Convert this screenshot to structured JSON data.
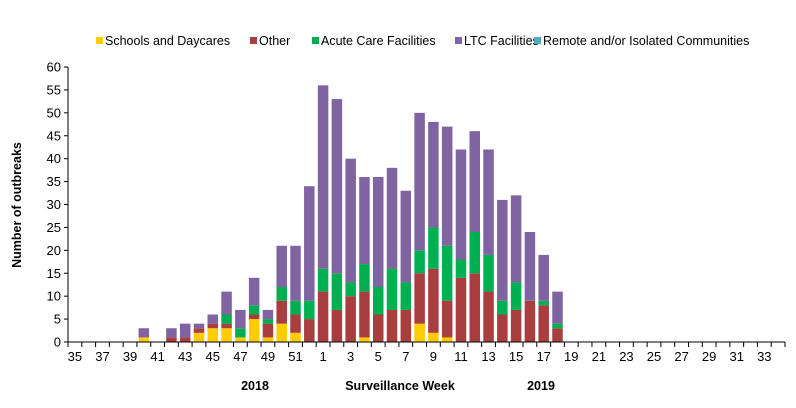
{
  "chart_data": {
    "type": "bar",
    "stacked": true,
    "title": "",
    "xlabel": "Surveillance Week",
    "ylabel": "Number of outbreaks",
    "year_labels": [
      "2018",
      "2019"
    ],
    "ylim": [
      0,
      60
    ],
    "ytick_step": 5,
    "grid": false,
    "legend_position": "top",
    "categories": [
      "35",
      "36",
      "37",
      "38",
      "39",
      "40",
      "41",
      "42",
      "43",
      "44",
      "45",
      "46",
      "47",
      "48",
      "49",
      "50",
      "51",
      "52",
      "1",
      "2",
      "3",
      "4",
      "5",
      "6",
      "7",
      "8",
      "9",
      "10",
      "11",
      "12",
      "13",
      "14",
      "15",
      "16",
      "17",
      "18",
      "19",
      "20",
      "21",
      "22",
      "23",
      "24",
      "25",
      "26",
      "27",
      "28",
      "29",
      "30",
      "31",
      "32",
      "33",
      "34"
    ],
    "xtick_labels_shown": [
      "35",
      "37",
      "39",
      "41",
      "43",
      "45",
      "47",
      "49",
      "51",
      "1",
      "3",
      "5",
      "7",
      "9",
      "11",
      "13",
      "15",
      "17",
      "19",
      "21",
      "23",
      "25",
      "27",
      "29",
      "31",
      "33"
    ],
    "series": [
      {
        "name": "Schools and Daycares",
        "color": "#FFCC00",
        "values": [
          0,
          0,
          0,
          0,
          0,
          1,
          0,
          0,
          0,
          2,
          3,
          3,
          1,
          5,
          1,
          4,
          2,
          0,
          0,
          0,
          0,
          1,
          0,
          0,
          0,
          4,
          2,
          1,
          0,
          0,
          0,
          0,
          0,
          0,
          0,
          0,
          0,
          0,
          0,
          0,
          0,
          0,
          0,
          0,
          0,
          0,
          0,
          0,
          0,
          0,
          0,
          0
        ]
      },
      {
        "name": "Other",
        "color": "#A83E3E",
        "values": [
          0,
          0,
          0,
          0,
          0,
          0,
          0,
          1,
          1,
          1,
          1,
          1,
          0,
          1,
          3,
          5,
          4,
          5,
          11,
          7,
          10,
          10,
          6,
          7,
          7,
          11,
          14,
          8,
          14,
          15,
          11,
          6,
          7,
          9,
          8,
          3,
          0,
          0,
          0,
          0,
          0,
          0,
          0,
          0,
          0,
          0,
          0,
          0,
          0,
          0,
          0,
          0
        ]
      },
      {
        "name": "Acute Care Facilities",
        "color": "#00B050",
        "values": [
          0,
          0,
          0,
          0,
          0,
          0,
          0,
          0,
          0,
          0,
          0,
          2,
          2,
          2,
          1,
          3,
          3,
          4,
          5,
          8,
          3,
          6,
          6,
          9,
          6,
          5,
          9,
          12,
          4,
          9,
          8,
          3,
          6,
          0,
          1,
          1,
          0,
          0,
          0,
          0,
          0,
          0,
          0,
          0,
          0,
          0,
          0,
          0,
          0,
          0,
          0,
          0
        ]
      },
      {
        "name": "LTC Facilities",
        "color": "#8064A2",
        "values": [
          0,
          0,
          0,
          0,
          0,
          2,
          0,
          2,
          3,
          1,
          2,
          5,
          4,
          6,
          2,
          9,
          12,
          25,
          40,
          38,
          27,
          19,
          24,
          22,
          20,
          30,
          23,
          26,
          24,
          22,
          23,
          22,
          19,
          15,
          10,
          7,
          0,
          0,
          0,
          0,
          0,
          0,
          0,
          0,
          0,
          0,
          0,
          0,
          0,
          0,
          0,
          0
        ]
      },
      {
        "name": "Remote and/or Isolated Communities",
        "color": "#4BACC6",
        "values": [
          0,
          0,
          0,
          0,
          0,
          0,
          0,
          0,
          0,
          0,
          0,
          0,
          0,
          0,
          0,
          0,
          0,
          0,
          0,
          0,
          0,
          0,
          0,
          0,
          0,
          0,
          0,
          0,
          0,
          0,
          0,
          0,
          0,
          0,
          0,
          0,
          0,
          0,
          0,
          0,
          0,
          0,
          0,
          0,
          0,
          0,
          0,
          0,
          0,
          0,
          0,
          0
        ]
      }
    ]
  }
}
